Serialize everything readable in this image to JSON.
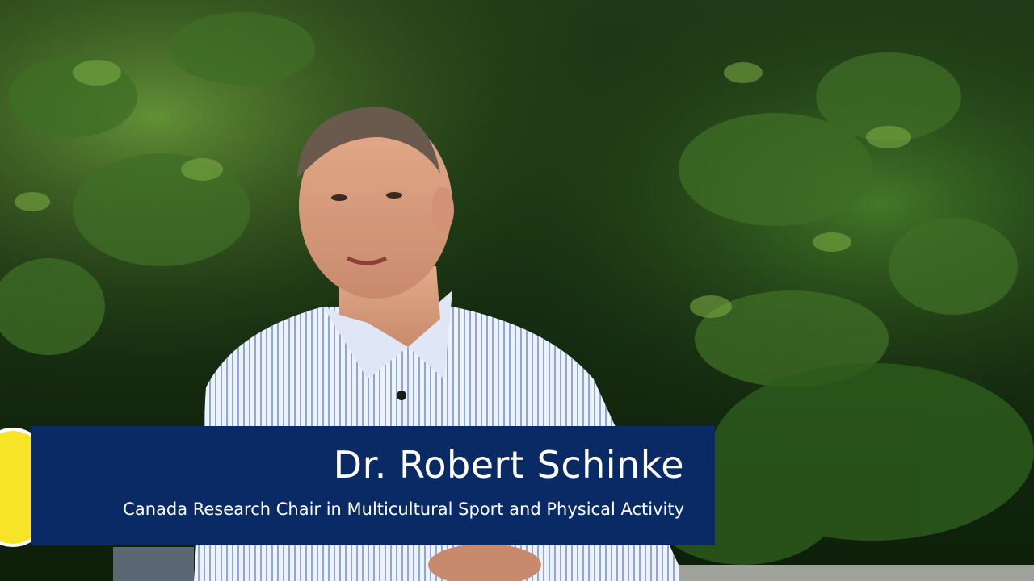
{
  "video": {
    "caption": {
      "name": "Dr. Robert Schinke",
      "title": "Canada Research Chair in Multicultural Sport and Physical Activity"
    }
  },
  "colors": {
    "lower_third_bg": "#0a2a66",
    "badge_yellow": "#f7e327",
    "text": "#ffffff"
  }
}
